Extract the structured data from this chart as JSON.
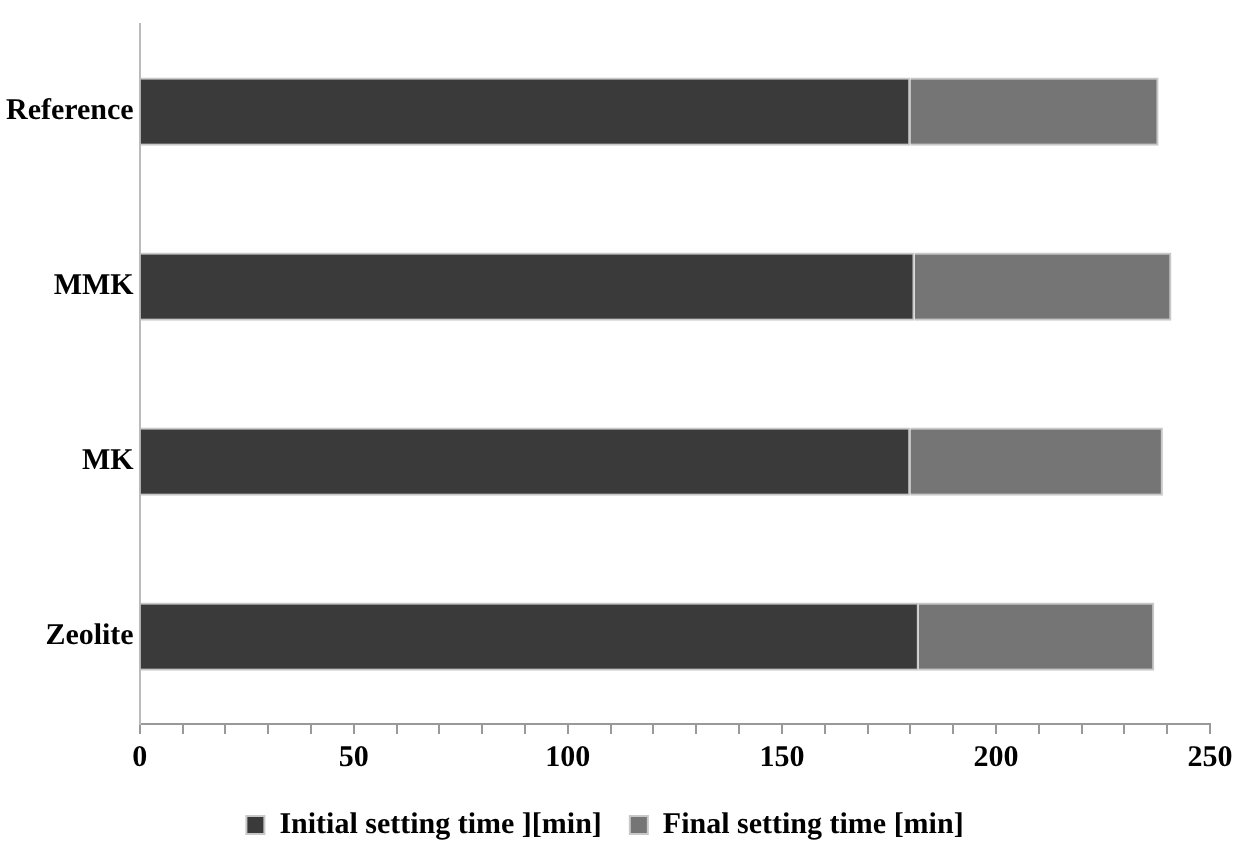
{
  "chart_data": {
    "type": "bar",
    "orientation": "horizontal",
    "stacked": true,
    "categories": [
      "Reference",
      "MMK",
      "MK",
      "Zeolite"
    ],
    "series": [
      {
        "name": "Initial setting time ][min]",
        "color": "#3a3a3a",
        "values": [
          180,
          181,
          180,
          182
        ]
      },
      {
        "name": "Final setting time [min]",
        "color": "#757575",
        "values": [
          58,
          60,
          59,
          55
        ]
      }
    ],
    "xlim": [
      0,
      250
    ],
    "xticks": [
      0,
      {
        "value": 10,
        "label": null
      },
      {
        "value": 20,
        "label": null
      },
      {
        "value": 30,
        "label": null
      },
      {
        "value": 40,
        "label": null
      },
      50,
      {
        "value": 60,
        "label": null
      },
      {
        "value": 70,
        "label": null
      },
      {
        "value": 80,
        "label": null
      },
      {
        "value": 90,
        "label": null
      },
      100,
      {
        "value": 110,
        "label": null
      },
      {
        "value": 120,
        "label": null
      },
      {
        "value": 130,
        "label": null
      },
      {
        "value": 140,
        "label": null
      },
      150,
      {
        "value": 160,
        "label": null
      },
      {
        "value": 170,
        "label": null
      },
      {
        "value": 180,
        "label": null
      },
      {
        "value": 190,
        "label": null
      },
      200,
      {
        "value": 210,
        "label": null
      },
      {
        "value": 220,
        "label": null
      },
      {
        "value": 230,
        "label": null
      },
      {
        "value": 240,
        "label": null
      },
      250
    ],
    "grid": false,
    "legend": "bottom"
  }
}
